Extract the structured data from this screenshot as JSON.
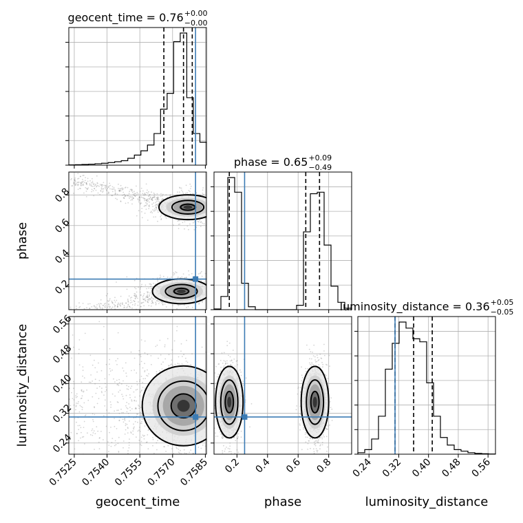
{
  "chart_data": {
    "type": "corner",
    "parameters": [
      {
        "name": "geocent_time",
        "xlabel": "geocent_time",
        "ylabel": "",
        "range": [
          0.75225,
          0.75855
        ],
        "ticks": [
          0.7525,
          0.754,
          0.7555,
          0.757,
          0.7585
        ],
        "tick_labels": [
          "0.7525",
          "0.7540",
          "0.7555",
          "0.7570",
          "0.7585"
        ],
        "truth": 0.75805,
        "quantiles": [
          0.7566,
          0.7575,
          0.7579
        ],
        "title_main": "geocent_time = 0.76",
        "title_up": "+0.00",
        "title_down": "−0.00",
        "hist_x": [
          0.75225,
          0.75255,
          0.75285,
          0.75315,
          0.75345,
          0.75375,
          0.75405,
          0.75435,
          0.75465,
          0.75495,
          0.75525,
          0.75555,
          0.75585,
          0.75615,
          0.75645,
          0.75675,
          0.75705,
          0.75735,
          0.75765,
          0.75795,
          0.75825,
          0.75855
        ],
        "hist_counts": [
          2,
          3,
          5,
          7,
          10,
          13,
          18,
          24,
          31,
          48,
          70,
          100,
          140,
          220,
          390,
          500,
          860,
          920,
          470,
          220,
          160
        ]
      },
      {
        "name": "phase",
        "xlabel": "phase",
        "ylabel": "phase",
        "range": [
          0.05,
          0.95
        ],
        "ticks": [
          0.2,
          0.4,
          0.6,
          0.8
        ],
        "tick_labels": [
          "0.2",
          "0.4",
          "0.6",
          "0.8"
        ],
        "truth": 0.25,
        "quantiles": [
          0.15,
          0.65,
          0.74
        ],
        "title_main": "phase = 0.65",
        "title_up": "+0.09",
        "title_down": "−0.49",
        "hist_x": [
          0.05,
          0.095,
          0.14,
          0.185,
          0.23,
          0.275,
          0.32,
          0.365,
          0.41,
          0.455,
          0.5,
          0.545,
          0.59,
          0.635,
          0.68,
          0.725,
          0.77,
          0.815,
          0.86,
          0.905,
          0.95
        ],
        "hist_counts": [
          5,
          90,
          900,
          800,
          180,
          20,
          0,
          0,
          0,
          0,
          0,
          0,
          30,
          530,
          790,
          800,
          440,
          160,
          50,
          10
        ]
      },
      {
        "name": "luminosity_distance",
        "xlabel": "luminosity_distance",
        "ylabel": "luminosity_distance",
        "range": [
          0.21,
          0.58
        ],
        "ticks": [
          0.24,
          0.32,
          0.4,
          0.48,
          0.56
        ],
        "tick_labels": [
          "0.24",
          "0.32",
          "0.40",
          "0.48",
          "0.56"
        ],
        "truth": 0.31,
        "quantiles": [
          0.31,
          0.36,
          0.41
        ],
        "title_main": "luminosity_distance = 0.36",
        "title_up": "+0.05",
        "title_down": "−0.05",
        "hist_x": [
          0.21,
          0.2285,
          0.247,
          0.2655,
          0.284,
          0.3025,
          0.321,
          0.3395,
          0.358,
          0.3765,
          0.395,
          0.4135,
          0.432,
          0.4505,
          0.469,
          0.4875,
          0.506,
          0.5245,
          0.543,
          0.5615,
          0.58
        ],
        "hist_counts": [
          10,
          30,
          100,
          250,
          560,
          730,
          870,
          830,
          760,
          740,
          470,
          250,
          110,
          60,
          30,
          20,
          10,
          5,
          3,
          1
        ]
      }
    ],
    "pairs": [
      {
        "x": "geocent_time",
        "y": "phase",
        "density_peaks": [
          {
            "x": 0.7574,
            "y": 0.17,
            "w": 1.0
          },
          {
            "x": 0.7577,
            "y": 0.72,
            "w": 0.9
          }
        ]
      },
      {
        "x": "geocent_time",
        "y": "luminosity_distance",
        "density_peaks": [
          {
            "x": 0.7575,
            "y": 0.34,
            "w": 1.0
          }
        ]
      },
      {
        "x": "phase",
        "y": "luminosity_distance",
        "density_peaks": [
          {
            "x": 0.15,
            "y": 0.35,
            "w": 1.0
          },
          {
            "x": 0.71,
            "y": 0.35,
            "w": 1.0
          }
        ]
      }
    ],
    "grid": true,
    "truth_color": "#3b7bb4"
  }
}
